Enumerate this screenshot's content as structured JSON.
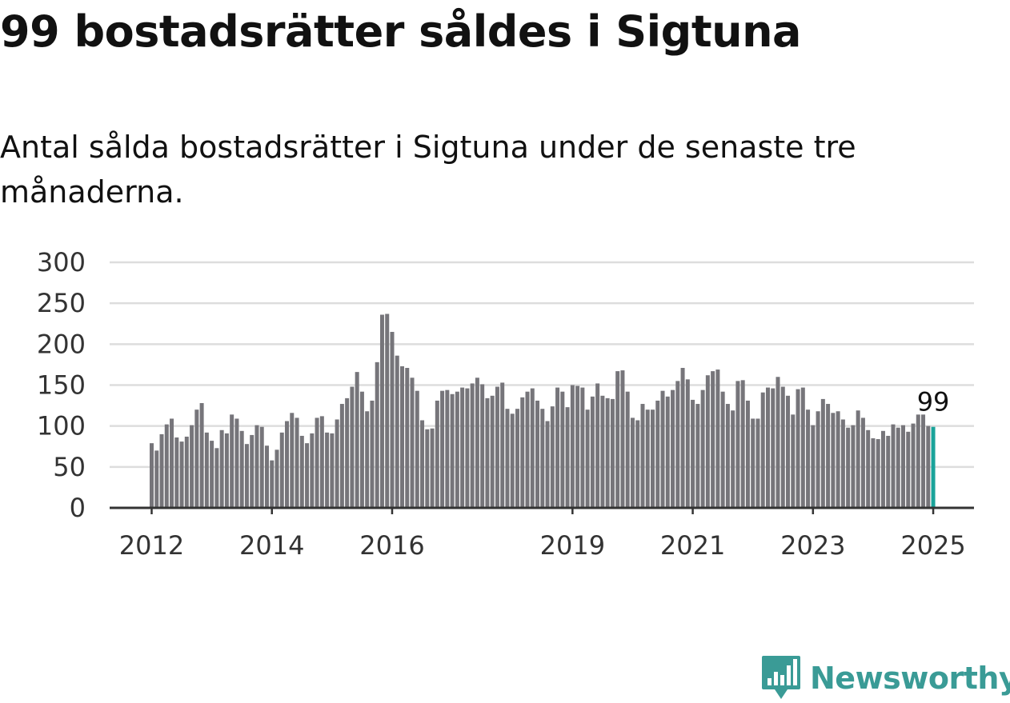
{
  "title": "99 bostadsrätter såldes i Sigtuna",
  "subtitle": "Antal sålda bostadsrätter i Sigtuna under de senaste tre månaderna.",
  "brand": {
    "name": "Newsworthy",
    "color": "#3a9b96",
    "icon": "newsworthy-bar-chart-logo-icon"
  },
  "colors": {
    "bar": "#76757a",
    "highlight": "#1aa39a",
    "grid": "#dddddd",
    "axis": "#333333"
  },
  "chart_data": {
    "type": "bar",
    "title": "99 bostadsrätter såldes i Sigtuna",
    "subtitle": "Antal sålda bostadsrätter i Sigtuna under de senaste tre månaderna.",
    "xlabel": "",
    "ylabel": "",
    "ylim": [
      0,
      300
    ],
    "yticks": [
      0,
      50,
      100,
      150,
      200,
      250,
      300
    ],
    "xticks": [
      "2012",
      "2014",
      "2016",
      "2019",
      "2021",
      "2023",
      "2025"
    ],
    "grid": true,
    "start": "2012-01",
    "frequency": "monthly",
    "values": [
      79,
      70,
      90,
      102,
      109,
      86,
      81,
      87,
      101,
      120,
      128,
      92,
      82,
      73,
      95,
      91,
      114,
      109,
      94,
      78,
      89,
      101,
      99,
      76,
      58,
      71,
      92,
      106,
      116,
      110,
      88,
      79,
      91,
      110,
      112,
      92,
      91,
      108,
      127,
      134,
      148,
      166,
      142,
      118,
      131,
      178,
      236,
      237,
      215,
      186,
      173,
      171,
      159,
      143,
      107,
      96,
      97,
      131,
      143,
      144,
      139,
      142,
      147,
      146,
      152,
      159,
      151,
      134,
      137,
      148,
      153,
      121,
      115,
      121,
      135,
      142,
      146,
      131,
      121,
      106,
      124,
      147,
      142,
      123,
      150,
      149,
      147,
      120,
      136,
      152,
      137,
      134,
      133,
      167,
      168,
      142,
      110,
      107,
      127,
      120,
      120,
      131,
      143,
      136,
      144,
      155,
      171,
      157,
      132,
      127,
      144,
      162,
      167,
      169,
      142,
      127,
      119,
      155,
      156,
      131,
      109,
      109,
      141,
      147,
      146,
      160,
      148,
      137,
      114,
      145,
      147,
      120,
      101,
      118,
      133,
      127,
      116,
      118,
      108,
      98,
      101,
      119,
      110,
      95,
      85,
      84,
      94,
      88,
      102,
      98,
      101,
      93,
      103,
      114,
      114,
      100,
      99
    ],
    "highlight_last": true,
    "annotations": [
      {
        "label": "99",
        "value": 99,
        "position": "last"
      }
    ]
  }
}
